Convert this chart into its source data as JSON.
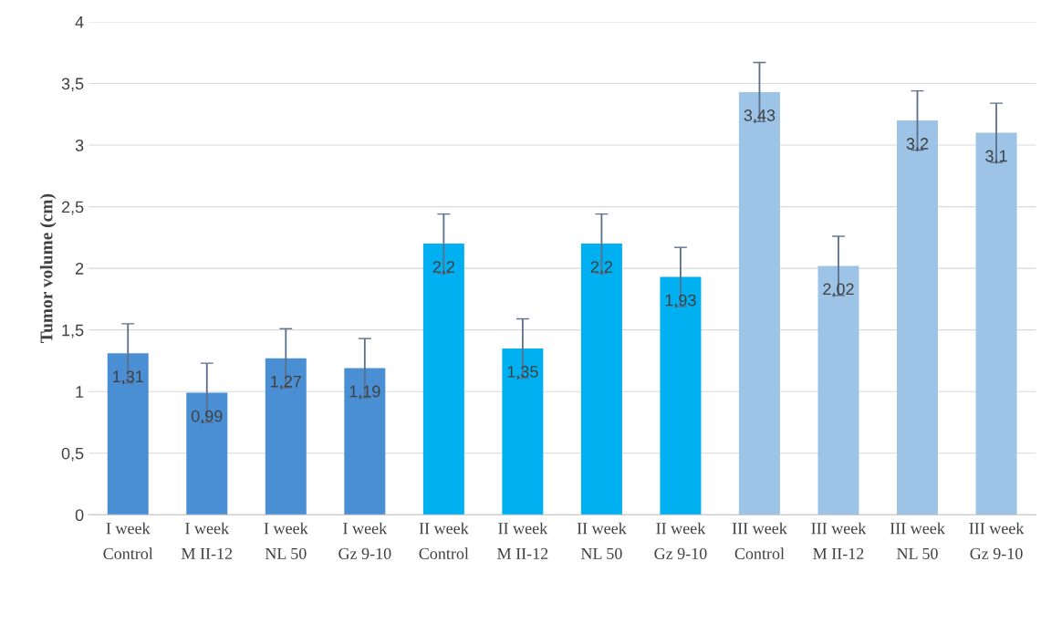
{
  "chart_data": {
    "type": "bar",
    "ylabel": "Tumor volume (cm)",
    "categories": [
      "I week\nControl",
      "I week\nM II-12",
      "I week\nNL 50",
      "I week\nGz 9-10",
      "II week\nControl",
      "II week\nM II-12",
      "II week\nNL 50",
      "II week\nGz 9-10",
      "III week\nControl",
      "III week\nM II-12",
      "III week\nNL 50",
      "III week\nGz 9-10"
    ],
    "values": [
      1.31,
      0.99,
      1.27,
      1.19,
      2.2,
      1.35,
      2.2,
      1.93,
      3.43,
      2.02,
      3.2,
      3.1
    ],
    "value_labels": [
      "1,31",
      "0,99",
      "1,27",
      "1,19",
      "2,2",
      "1,35",
      "2,2",
      "1,93",
      "3,43",
      "2,02",
      "3,2",
      "3,1"
    ],
    "errors": [
      0.24,
      0.24,
      0.24,
      0.24,
      0.24,
      0.24,
      0.24,
      0.24,
      0.24,
      0.24,
      0.24,
      0.24
    ],
    "colors": [
      "#4a8ed4",
      "#4a8ed4",
      "#4a8ed4",
      "#4a8ed4",
      "#00b0f0",
      "#00b0f0",
      "#00b0f0",
      "#00b0f0",
      "#9dc3e6",
      "#9dc3e6",
      "#9dc3e6",
      "#9dc3e6"
    ],
    "ylim": [
      0,
      4
    ],
    "yticks": [
      0,
      {
        "value": 0.5,
        "label": "0,5"
      },
      1,
      {
        "value": 1.5,
        "label": "1,5"
      },
      2,
      {
        "value": 2.5,
        "label": "2,5"
      },
      3,
      {
        "value": 3.5,
        "label": "3,5"
      },
      4
    ],
    "grid": "y"
  }
}
